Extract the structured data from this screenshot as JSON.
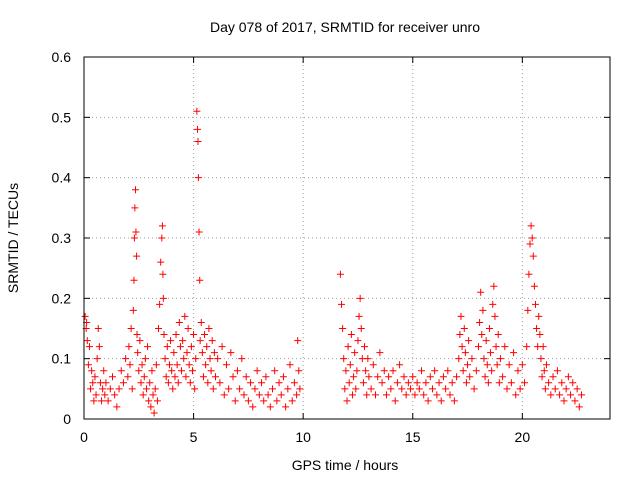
{
  "chart_data": {
    "type": "scatter",
    "title": "Day 078 of 2017, SRMTID for receiver unro",
    "xlabel": "GPS time / hours",
    "ylabel": "SRMTID / TECUs",
    "xlim": [
      0,
      24
    ],
    "ylim": [
      0,
      0.6
    ],
    "xticks": [
      0,
      5,
      10,
      15,
      20
    ],
    "yticks": [
      0,
      0.1,
      0.2,
      0.3,
      0.4,
      0.5,
      0.6
    ],
    "xtick_labels": [
      "0",
      "5",
      "10",
      "15",
      "20"
    ],
    "ytick_labels": [
      "0",
      "0.1",
      "0.2",
      "0.3",
      "0.4",
      "0.5",
      "0.6"
    ],
    "grid": true,
    "marker": "+",
    "color": "#ff0000",
    "series": [
      {
        "name": "SRMTID",
        "points": [
          [
            0.05,
            0.17
          ],
          [
            0.1,
            0.15
          ],
          [
            0.12,
            0.16
          ],
          [
            0.15,
            0.13
          ],
          [
            0.2,
            0.09
          ],
          [
            0.25,
            0.12
          ],
          [
            0.3,
            0.05
          ],
          [
            0.35,
            0.08
          ],
          [
            0.4,
            0.06
          ],
          [
            0.45,
            0.03
          ],
          [
            0.5,
            0.07
          ],
          [
            0.55,
            0.04
          ],
          [
            0.6,
            0.1
          ],
          [
            0.65,
            0.15
          ],
          [
            0.7,
            0.12
          ],
          [
            0.75,
            0.06
          ],
          [
            0.8,
            0.03
          ],
          [
            0.85,
            0.05
          ],
          [
            0.9,
            0.08
          ],
          [
            0.95,
            0.04
          ],
          [
            1.0,
            0.06
          ],
          [
            1.1,
            0.03
          ],
          [
            1.2,
            0.05
          ],
          [
            1.3,
            0.07
          ],
          [
            1.4,
            0.04
          ],
          [
            1.5,
            0.02
          ],
          [
            1.6,
            0.05
          ],
          [
            1.7,
            0.08
          ],
          [
            1.8,
            0.06
          ],
          [
            1.9,
            0.1
          ],
          [
            2.0,
            0.07
          ],
          [
            2.05,
            0.12
          ],
          [
            2.1,
            0.09
          ],
          [
            2.15,
            0.15
          ],
          [
            2.2,
            0.05
          ],
          [
            2.25,
            0.18
          ],
          [
            2.28,
            0.23
          ],
          [
            2.3,
            0.3
          ],
          [
            2.32,
            0.35
          ],
          [
            2.35,
            0.38
          ],
          [
            2.37,
            0.31
          ],
          [
            2.4,
            0.27
          ],
          [
            2.42,
            0.14
          ],
          [
            2.45,
            0.11
          ],
          [
            2.5,
            0.08
          ],
          [
            2.55,
            0.13
          ],
          [
            2.6,
            0.06
          ],
          [
            2.65,
            0.09
          ],
          [
            2.7,
            0.04
          ],
          [
            2.75,
            0.07
          ],
          [
            2.8,
            0.1
          ],
          [
            2.85,
            0.05
          ],
          [
            2.9,
            0.12
          ],
          [
            2.95,
            0.03
          ],
          [
            3.0,
            0.06
          ],
          [
            3.05,
            0.02
          ],
          [
            3.1,
            0.08
          ],
          [
            3.15,
            0.04
          ],
          [
            3.2,
            0.01
          ],
          [
            3.25,
            0.05
          ],
          [
            3.3,
            0.09
          ],
          [
            3.35,
            0.03
          ],
          [
            3.4,
            0.15
          ],
          [
            3.45,
            0.19
          ],
          [
            3.5,
            0.26
          ],
          [
            3.55,
            0.3
          ],
          [
            3.58,
            0.32
          ],
          [
            3.6,
            0.24
          ],
          [
            3.62,
            0.2
          ],
          [
            3.65,
            0.14
          ],
          [
            3.7,
            0.1
          ],
          [
            3.75,
            0.07
          ],
          [
            3.8,
            0.12
          ],
          [
            3.85,
            0.06
          ],
          [
            3.9,
            0.09
          ],
          [
            3.95,
            0.13
          ],
          [
            4.0,
            0.08
          ],
          [
            4.05,
            0.05
          ],
          [
            4.1,
            0.11
          ],
          [
            4.15,
            0.07
          ],
          [
            4.2,
            0.14
          ],
          [
            4.25,
            0.09
          ],
          [
            4.3,
            0.06
          ],
          [
            4.35,
            0.16
          ],
          [
            4.4,
            0.12
          ],
          [
            4.45,
            0.08
          ],
          [
            4.5,
            0.13
          ],
          [
            4.55,
            0.1
          ],
          [
            4.6,
            0.17
          ],
          [
            4.65,
            0.07
          ],
          [
            4.7,
            0.11
          ],
          [
            4.75,
            0.15
          ],
          [
            4.8,
            0.09
          ],
          [
            4.85,
            0.06
          ],
          [
            4.9,
            0.12
          ],
          [
            4.95,
            0.08
          ],
          [
            5.0,
            0.14
          ],
          [
            5.05,
            0.05
          ],
          [
            5.1,
            0.1
          ],
          [
            5.15,
            0.51
          ],
          [
            5.18,
            0.48
          ],
          [
            5.2,
            0.46
          ],
          [
            5.22,
            0.4
          ],
          [
            5.25,
            0.31
          ],
          [
            5.28,
            0.23
          ],
          [
            5.3,
            0.13
          ],
          [
            5.35,
            0.16
          ],
          [
            5.4,
            0.11
          ],
          [
            5.45,
            0.07
          ],
          [
            5.5,
            0.14
          ],
          [
            5.55,
            0.09
          ],
          [
            5.6,
            0.12
          ],
          [
            5.65,
            0.06
          ],
          [
            5.7,
            0.15
          ],
          [
            5.75,
            0.1
          ],
          [
            5.8,
            0.08
          ],
          [
            5.85,
            0.13
          ],
          [
            5.9,
            0.05
          ],
          [
            5.95,
            0.11
          ],
          [
            6.0,
            0.07
          ],
          [
            6.1,
            0.1
          ],
          [
            6.2,
            0.06
          ],
          [
            6.3,
            0.12
          ],
          [
            6.4,
            0.04
          ],
          [
            6.5,
            0.09
          ],
          [
            6.6,
            0.05
          ],
          [
            6.7,
            0.11
          ],
          [
            6.8,
            0.07
          ],
          [
            6.9,
            0.03
          ],
          [
            7.0,
            0.08
          ],
          [
            7.1,
            0.05
          ],
          [
            7.2,
            0.1
          ],
          [
            7.3,
            0.04
          ],
          [
            7.4,
            0.07
          ],
          [
            7.5,
            0.03
          ],
          [
            7.6,
            0.06
          ],
          [
            7.7,
            0.02
          ],
          [
            7.8,
            0.05
          ],
          [
            7.9,
            0.08
          ],
          [
            8.0,
            0.04
          ],
          [
            8.1,
            0.06
          ],
          [
            8.2,
            0.03
          ],
          [
            8.3,
            0.07
          ],
          [
            8.4,
            0.04
          ],
          [
            8.5,
            0.02
          ],
          [
            8.6,
            0.05
          ],
          [
            8.7,
            0.08
          ],
          [
            8.8,
            0.03
          ],
          [
            8.9,
            0.06
          ],
          [
            9.0,
            0.04
          ],
          [
            9.1,
            0.07
          ],
          [
            9.2,
            0.02
          ],
          [
            9.3,
            0.05
          ],
          [
            9.4,
            0.09
          ],
          [
            9.5,
            0.03
          ],
          [
            9.6,
            0.06
          ],
          [
            9.7,
            0.04
          ],
          [
            9.75,
            0.13
          ],
          [
            9.8,
            0.08
          ],
          [
            9.85,
            0.05
          ],
          [
            11.7,
            0.24
          ],
          [
            11.75,
            0.19
          ],
          [
            11.8,
            0.15
          ],
          [
            11.85,
            0.1
          ],
          [
            11.9,
            0.05
          ],
          [
            11.95,
            0.08
          ],
          [
            12.0,
            0.03
          ],
          [
            12.05,
            0.12
          ],
          [
            12.1,
            0.06
          ],
          [
            12.15,
            0.09
          ],
          [
            12.2,
            0.14
          ],
          [
            12.25,
            0.04
          ],
          [
            12.3,
            0.07
          ],
          [
            12.35,
            0.11
          ],
          [
            12.4,
            0.05
          ],
          [
            12.45,
            0.08
          ],
          [
            12.5,
            0.13
          ],
          [
            12.55,
            0.17
          ],
          [
            12.6,
            0.2
          ],
          [
            12.65,
            0.15
          ],
          [
            12.7,
            0.1
          ],
          [
            12.75,
            0.06
          ],
          [
            12.8,
            0.12
          ],
          [
            12.85,
            0.08
          ],
          [
            12.9,
            0.04
          ],
          [
            12.95,
            0.1
          ],
          [
            13.0,
            0.07
          ],
          [
            13.1,
            0.05
          ],
          [
            13.2,
            0.09
          ],
          [
            13.3,
            0.04
          ],
          [
            13.4,
            0.07
          ],
          [
            13.5,
            0.11
          ],
          [
            13.6,
            0.06
          ],
          [
            13.7,
            0.08
          ],
          [
            13.8,
            0.04
          ],
          [
            13.9,
            0.07
          ],
          [
            14.0,
            0.05
          ],
          [
            14.1,
            0.08
          ],
          [
            14.2,
            0.03
          ],
          [
            14.3,
            0.06
          ],
          [
            14.4,
            0.09
          ],
          [
            14.5,
            0.05
          ],
          [
            14.6,
            0.07
          ],
          [
            14.7,
            0.04
          ],
          [
            14.8,
            0.06
          ],
          [
            14.9,
            0.05
          ],
          [
            15.0,
            0.07
          ],
          [
            15.1,
            0.04
          ],
          [
            15.2,
            0.06
          ],
          [
            15.3,
            0.05
          ],
          [
            15.4,
            0.08
          ],
          [
            15.5,
            0.04
          ],
          [
            15.6,
            0.06
          ],
          [
            15.7,
            0.03
          ],
          [
            15.8,
            0.07
          ],
          [
            15.9,
            0.05
          ],
          [
            16.0,
            0.08
          ],
          [
            16.1,
            0.04
          ],
          [
            16.2,
            0.06
          ],
          [
            16.3,
            0.03
          ],
          [
            16.4,
            0.07
          ],
          [
            16.5,
            0.05
          ],
          [
            16.6,
            0.08
          ],
          [
            16.7,
            0.04
          ],
          [
            16.8,
            0.06
          ],
          [
            16.9,
            0.03
          ],
          [
            17.0,
            0.07
          ],
          [
            17.1,
            0.1
          ],
          [
            17.15,
            0.14
          ],
          [
            17.2,
            0.17
          ],
          [
            17.25,
            0.12
          ],
          [
            17.3,
            0.08
          ],
          [
            17.35,
            0.15
          ],
          [
            17.4,
            0.11
          ],
          [
            17.45,
            0.06
          ],
          [
            17.5,
            0.09
          ],
          [
            17.55,
            0.13
          ],
          [
            17.6,
            0.07
          ],
          [
            17.7,
            0.1
          ],
          [
            17.8,
            0.05
          ],
          [
            17.9,
            0.08
          ],
          [
            18.0,
            0.12
          ],
          [
            18.05,
            0.16
          ],
          [
            18.1,
            0.21
          ],
          [
            18.15,
            0.14
          ],
          [
            18.2,
            0.18
          ],
          [
            18.25,
            0.1
          ],
          [
            18.3,
            0.07
          ],
          [
            18.35,
            0.13
          ],
          [
            18.4,
            0.09
          ],
          [
            18.45,
            0.06
          ],
          [
            18.5,
            0.15
          ],
          [
            18.55,
            0.11
          ],
          [
            18.6,
            0.08
          ],
          [
            18.65,
            0.19
          ],
          [
            18.7,
            0.22
          ],
          [
            18.75,
            0.17
          ],
          [
            18.8,
            0.12
          ],
          [
            18.85,
            0.09
          ],
          [
            18.9,
            0.14
          ],
          [
            18.95,
            0.06
          ],
          [
            19.0,
            0.1
          ],
          [
            19.1,
            0.07
          ],
          [
            19.2,
            0.12
          ],
          [
            19.3,
            0.05
          ],
          [
            19.4,
            0.09
          ],
          [
            19.5,
            0.06
          ],
          [
            19.6,
            0.11
          ],
          [
            19.7,
            0.04
          ],
          [
            19.8,
            0.08
          ],
          [
            19.9,
            0.05
          ],
          [
            20.0,
            0.09
          ],
          [
            20.1,
            0.06
          ],
          [
            20.2,
            0.12
          ],
          [
            20.25,
            0.18
          ],
          [
            20.3,
            0.24
          ],
          [
            20.35,
            0.29
          ],
          [
            20.4,
            0.32
          ],
          [
            20.45,
            0.3
          ],
          [
            20.5,
            0.27
          ],
          [
            20.55,
            0.22
          ],
          [
            20.6,
            0.19
          ],
          [
            20.65,
            0.15
          ],
          [
            20.7,
            0.12
          ],
          [
            20.75,
            0.17
          ],
          [
            20.8,
            0.14
          ],
          [
            20.85,
            0.1
          ],
          [
            20.9,
            0.07
          ],
          [
            20.95,
            0.12
          ],
          [
            21.0,
            0.08
          ],
          [
            21.05,
            0.05
          ],
          [
            21.1,
            0.09
          ],
          [
            21.2,
            0.06
          ],
          [
            21.3,
            0.04
          ],
          [
            21.4,
            0.07
          ],
          [
            21.5,
            0.05
          ],
          [
            21.6,
            0.08
          ],
          [
            21.7,
            0.04
          ],
          [
            21.8,
            0.06
          ],
          [
            21.9,
            0.03
          ],
          [
            22.0,
            0.05
          ],
          [
            22.1,
            0.07
          ],
          [
            22.2,
            0.04
          ],
          [
            22.3,
            0.06
          ],
          [
            22.4,
            0.03
          ],
          [
            22.5,
            0.05
          ],
          [
            22.6,
            0.02
          ],
          [
            22.7,
            0.04
          ]
        ]
      }
    ]
  }
}
